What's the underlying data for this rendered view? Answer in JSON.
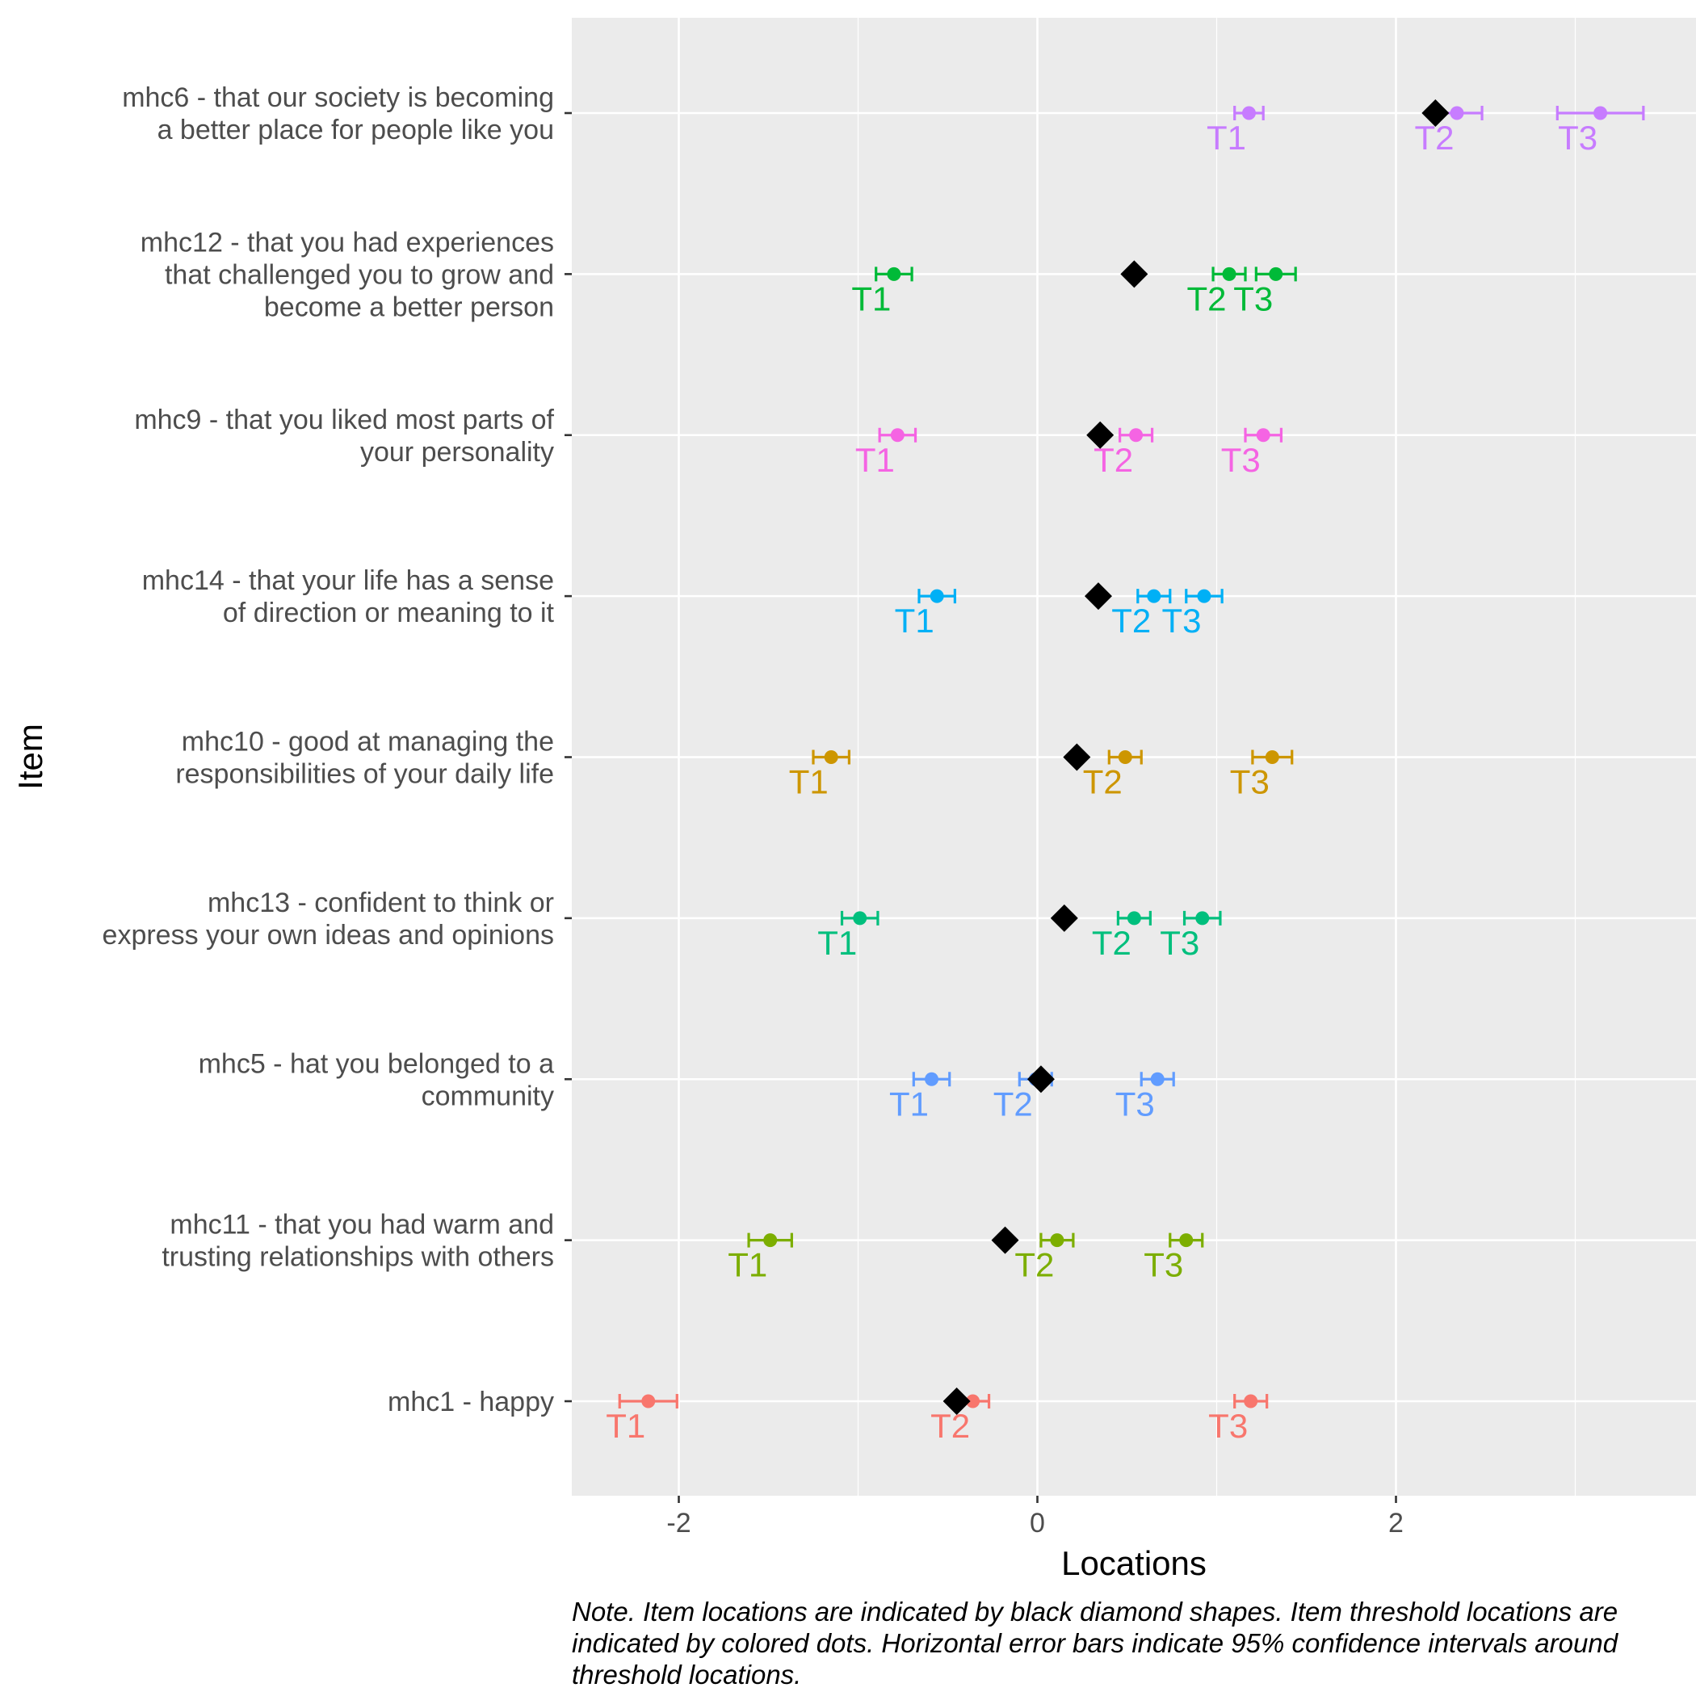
{
  "chart_data": {
    "type": "scatter",
    "xlabel": "Locations",
    "ylabel": "Item",
    "xlim": [
      -2.6,
      3.65
    ],
    "xticks": [
      -2,
      0,
      2
    ],
    "xtick_labels": [
      "-2",
      "0",
      "2"
    ],
    "grid": true,
    "legend": "none",
    "threshold_labels": [
      "T1",
      "T2",
      "T3"
    ],
    "items": [
      {
        "label": [
          "mhc6 - that our society is becoming",
          "a better place for people like you"
        ],
        "color": "#C77CFF",
        "location": 2.22,
        "thresholds": [
          {
            "value": 1.18,
            "ci": [
              1.1,
              1.26
            ]
          },
          {
            "value": 2.34,
            "ci": [
              2.2,
              2.48
            ]
          },
          {
            "value": 3.14,
            "ci": [
              2.9,
              3.38
            ]
          }
        ]
      },
      {
        "label": [
          "mhc12 - that you had experiences",
          "that challenged you to grow and",
          "become a better person"
        ],
        "color": "#00BA38",
        "location": 0.54,
        "thresholds": [
          {
            "value": -0.8,
            "ci": [
              -0.9,
              -0.7
            ]
          },
          {
            "value": 1.07,
            "ci": [
              0.98,
              1.16
            ]
          },
          {
            "value": 1.33,
            "ci": [
              1.22,
              1.44
            ]
          }
        ]
      },
      {
        "label": [
          "mhc9 - that you liked most parts of",
          "your personality"
        ],
        "color": "#F564E3",
        "location": 0.35,
        "thresholds": [
          {
            "value": -0.78,
            "ci": [
              -0.88,
              -0.68
            ]
          },
          {
            "value": 0.55,
            "ci": [
              0.46,
              0.64
            ]
          },
          {
            "value": 1.26,
            "ci": [
              1.16,
              1.36
            ]
          }
        ]
      },
      {
        "label": [
          "mhc14 - that your life has a sense",
          "of direction or meaning to it"
        ],
        "color": "#00B0F6",
        "location": 0.34,
        "thresholds": [
          {
            "value": -0.56,
            "ci": [
              -0.66,
              -0.46
            ]
          },
          {
            "value": 0.65,
            "ci": [
              0.56,
              0.74
            ]
          },
          {
            "value": 0.93,
            "ci": [
              0.83,
              1.03
            ]
          }
        ]
      },
      {
        "label": [
          "mhc10 - good at managing the",
          "responsibilities of your daily life"
        ],
        "color": "#CD9600",
        "location": 0.22,
        "thresholds": [
          {
            "value": -1.15,
            "ci": [
              -1.25,
              -1.05
            ]
          },
          {
            "value": 0.49,
            "ci": [
              0.4,
              0.58
            ]
          },
          {
            "value": 1.31,
            "ci": [
              1.2,
              1.42
            ]
          }
        ]
      },
      {
        "label": [
          "mhc13 - confident to think or",
          "express your own ideas and opinions"
        ],
        "color": "#00BF7D",
        "location": 0.15,
        "thresholds": [
          {
            "value": -0.99,
            "ci": [
              -1.09,
              -0.89
            ]
          },
          {
            "value": 0.54,
            "ci": [
              0.45,
              0.63
            ]
          },
          {
            "value": 0.92,
            "ci": [
              0.82,
              1.02
            ]
          }
        ]
      },
      {
        "label": [
          "mhc5 - hat you belonged to a",
          "community"
        ],
        "color": "#619CFF",
        "location": 0.02,
        "thresholds": [
          {
            "value": -0.59,
            "ci": [
              -0.69,
              -0.49
            ]
          },
          {
            "value": -0.01,
            "ci": [
              -0.1,
              0.08
            ]
          },
          {
            "value": 0.67,
            "ci": [
              0.58,
              0.76
            ]
          }
        ]
      },
      {
        "label": [
          "mhc11 - that you had warm and",
          "trusting relationships with others"
        ],
        "color": "#7CAE00",
        "location": -0.18,
        "thresholds": [
          {
            "value": -1.49,
            "ci": [
              -1.61,
              -1.37
            ]
          },
          {
            "value": 0.11,
            "ci": [
              0.02,
              0.2
            ]
          },
          {
            "value": 0.83,
            "ci": [
              0.74,
              0.92
            ]
          }
        ]
      },
      {
        "label": [
          "mhc1 - happy"
        ],
        "color": "#F8766D",
        "location": -0.45,
        "thresholds": [
          {
            "value": -2.17,
            "ci": [
              -2.33,
              -2.01
            ]
          },
          {
            "value": -0.36,
            "ci": [
              -0.45,
              -0.27
            ]
          },
          {
            "value": 1.19,
            "ci": [
              1.1,
              1.28
            ]
          }
        ]
      }
    ]
  },
  "note": "Note. Item locations are indicated by black diamond shapes. Item threshold locations are indicated by colored dots. Horizontal error bars indicate 95% confidence intervals around threshold locations."
}
